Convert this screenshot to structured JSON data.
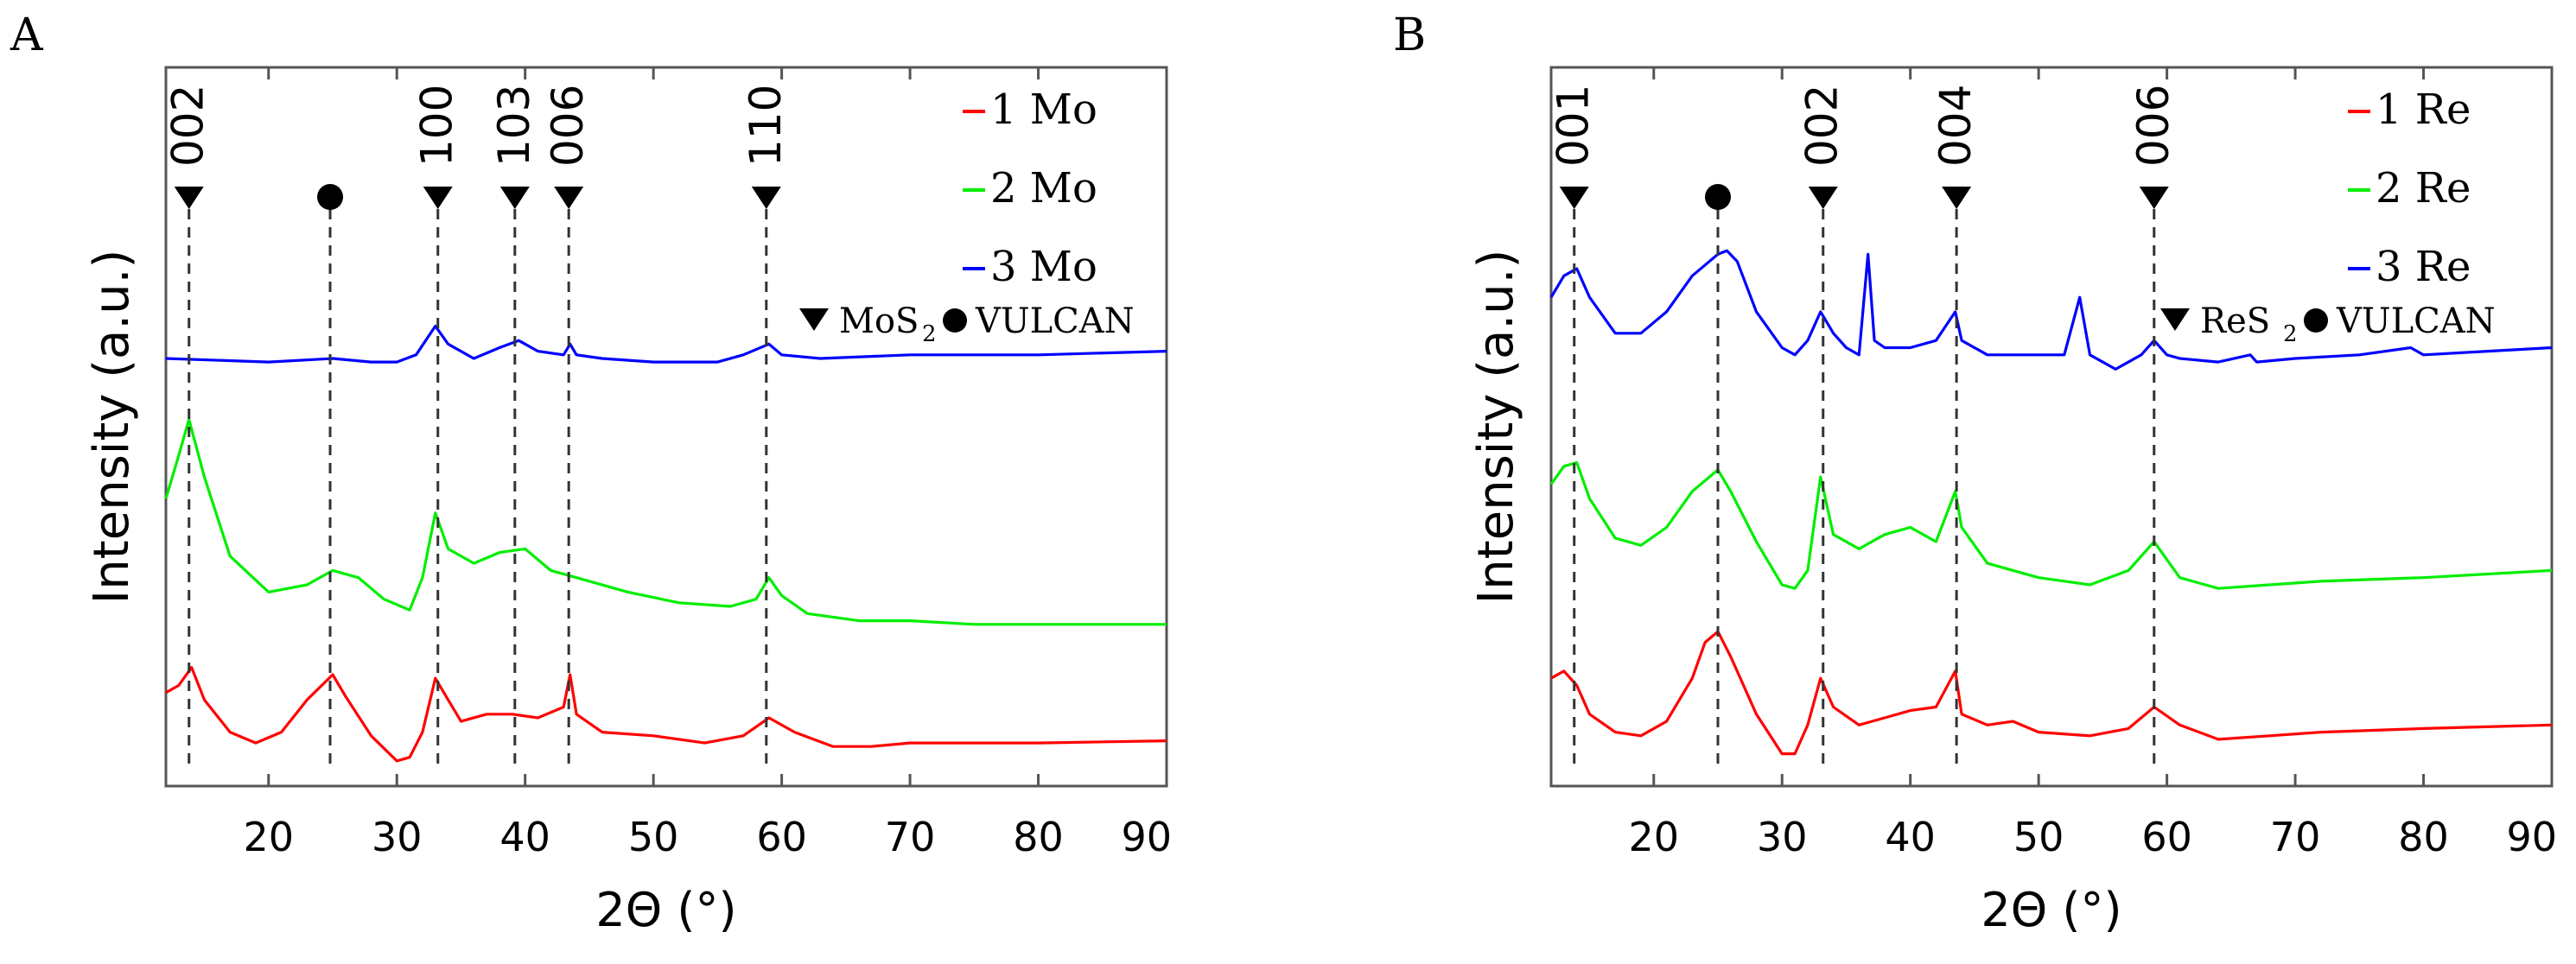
{
  "chart_data": [
    {
      "panel_label": "A",
      "type": "line",
      "xlabel": "2Θ (°)",
      "ylabel": "Intensity (a.u.)",
      "xlim": [
        12,
        90
      ],
      "x_ticks": [
        20,
        30,
        40,
        50,
        60,
        70,
        80,
        90
      ],
      "series": [
        {
          "name": "1 Mo",
          "color": "#ff0000",
          "x": [
            12,
            13,
            14,
            15,
            17,
            19,
            21,
            23,
            25,
            26,
            28,
            30,
            31,
            32,
            33,
            34,
            35,
            37,
            39,
            41,
            43,
            43.5,
            44,
            46,
            50,
            54,
            57,
            59,
            61,
            64,
            67,
            70,
            74,
            80,
            90
          ],
          "y": [
            0.13,
            0.14,
            0.165,
            0.12,
            0.075,
            0.06,
            0.075,
            0.12,
            0.155,
            0.125,
            0.07,
            0.035,
            0.04,
            0.075,
            0.15,
            0.12,
            0.09,
            0.1,
            0.1,
            0.095,
            0.11,
            0.155,
            0.1,
            0.075,
            0.07,
            0.06,
            0.07,
            0.095,
            0.075,
            0.055,
            0.055,
            0.06,
            0.06,
            0.06,
            0.063
          ]
        },
        {
          "name": "2 Mo",
          "color": "#00ee00",
          "x": [
            12,
            13,
            13.8,
            15,
            17,
            20,
            23,
            25,
            27,
            29,
            31,
            32,
            33,
            34,
            36,
            38,
            40,
            42,
            44,
            48,
            52,
            56,
            58,
            59,
            60,
            62,
            66,
            70,
            75,
            80,
            90
          ],
          "y": [
            0.4,
            0.46,
            0.51,
            0.43,
            0.32,
            0.27,
            0.28,
            0.3,
            0.29,
            0.26,
            0.245,
            0.29,
            0.38,
            0.33,
            0.31,
            0.325,
            0.33,
            0.3,
            0.29,
            0.27,
            0.255,
            0.25,
            0.26,
            0.29,
            0.265,
            0.24,
            0.23,
            0.23,
            0.225,
            0.225,
            0.225
          ]
        },
        {
          "name": "3 Mo",
          "color": "#0000ff",
          "x": [
            12,
            20,
            25,
            28,
            30,
            31.5,
            33,
            34,
            36,
            38,
            39.5,
            41,
            43,
            43.5,
            44,
            46,
            50,
            55,
            57,
            59,
            60,
            63,
            70,
            80,
            90
          ],
          "y": [
            0.595,
            0.59,
            0.595,
            0.59,
            0.59,
            0.6,
            0.64,
            0.615,
            0.595,
            0.61,
            0.62,
            0.605,
            0.6,
            0.615,
            0.6,
            0.595,
            0.59,
            0.59,
            0.6,
            0.615,
            0.6,
            0.595,
            0.6,
            0.6,
            0.605
          ]
        }
      ],
      "reflections": [
        {
          "label": "002",
          "x": 13.8,
          "phase": "MoS2"
        },
        {
          "label": "",
          "x": 24.8,
          "phase": "VULCAN"
        },
        {
          "label": "100",
          "x": 33.2,
          "phase": "MoS2"
        },
        {
          "label": "103",
          "x": 39.2,
          "phase": "MoS2"
        },
        {
          "label": "006",
          "x": 43.4,
          "phase": "MoS2"
        },
        {
          "label": "110",
          "x": 58.8,
          "phase": "MoS2"
        }
      ],
      "phase_legend": {
        "phase1": "MoS",
        "phase1_sub": "2",
        "phase2": "VULCAN"
      }
    },
    {
      "panel_label": "B",
      "type": "line",
      "xlabel": "2Θ (°)",
      "ylabel": "Intensity (a.u.)",
      "xlim": [
        12,
        90
      ],
      "x_ticks": [
        20,
        30,
        40,
        50,
        60,
        70,
        80,
        90
      ],
      "series": [
        {
          "name": "1 Re",
          "color": "#ff0000",
          "x": [
            12,
            13,
            14,
            15,
            17,
            19,
            21,
            23,
            24,
            25,
            26,
            28,
            30,
            31,
            32,
            33,
            34,
            36,
            38,
            40,
            42,
            43.5,
            44,
            46,
            48,
            50,
            54,
            57,
            59,
            61,
            64,
            68,
            72,
            80,
            90
          ],
          "y": [
            0.15,
            0.16,
            0.14,
            0.1,
            0.075,
            0.07,
            0.09,
            0.15,
            0.2,
            0.215,
            0.18,
            0.1,
            0.045,
            0.045,
            0.085,
            0.15,
            0.11,
            0.085,
            0.095,
            0.105,
            0.11,
            0.16,
            0.1,
            0.085,
            0.09,
            0.075,
            0.07,
            0.08,
            0.11,
            0.085,
            0.065,
            0.07,
            0.075,
            0.08,
            0.085
          ]
        },
        {
          "name": "2 Re",
          "color": "#00ee00",
          "x": [
            12,
            13,
            14,
            15,
            17,
            19,
            21,
            23,
            25,
            26,
            28,
            30,
            31,
            32,
            33,
            34,
            36,
            38,
            40,
            42,
            43.5,
            44,
            46,
            48,
            50,
            54,
            57,
            59,
            61,
            64,
            68,
            72,
            80,
            90
          ],
          "y": [
            0.42,
            0.445,
            0.45,
            0.4,
            0.345,
            0.335,
            0.36,
            0.41,
            0.44,
            0.41,
            0.34,
            0.28,
            0.275,
            0.3,
            0.43,
            0.35,
            0.33,
            0.35,
            0.36,
            0.34,
            0.41,
            0.36,
            0.31,
            0.3,
            0.29,
            0.28,
            0.3,
            0.34,
            0.29,
            0.275,
            0.28,
            0.285,
            0.29,
            0.3
          ]
        },
        {
          "name": "3 Re",
          "color": "#0000ff",
          "x": [
            12,
            13,
            14,
            15,
            17,
            19,
            21,
            23,
            25,
            25.7,
            26.5,
            28,
            30,
            31,
            32,
            33,
            34,
            35,
            36,
            36.7,
            37.2,
            38,
            40,
            42,
            43.5,
            44,
            46,
            48,
            50,
            52,
            53.2,
            54,
            56,
            58,
            59,
            60,
            61,
            64,
            66.5,
            67,
            70,
            75,
            79,
            80,
            85,
            90
          ],
          "y": [
            0.68,
            0.71,
            0.72,
            0.68,
            0.63,
            0.63,
            0.66,
            0.71,
            0.74,
            0.745,
            0.73,
            0.66,
            0.61,
            0.6,
            0.62,
            0.66,
            0.63,
            0.61,
            0.6,
            0.74,
            0.62,
            0.61,
            0.61,
            0.62,
            0.66,
            0.62,
            0.6,
            0.6,
            0.6,
            0.6,
            0.68,
            0.6,
            0.58,
            0.6,
            0.62,
            0.6,
            0.595,
            0.59,
            0.6,
            0.59,
            0.595,
            0.6,
            0.61,
            0.6,
            0.605,
            0.61
          ]
        }
      ],
      "reflections": [
        {
          "label": "001",
          "x": 13.8,
          "phase": "ReS2"
        },
        {
          "label": "",
          "x": 25.0,
          "phase": "VULCAN"
        },
        {
          "label": "002",
          "x": 33.2,
          "phase": "ReS2"
        },
        {
          "label": "004",
          "x": 43.6,
          "phase": "ReS2"
        },
        {
          "label": "006",
          "x": 59.0,
          "phase": "ReS2"
        }
      ],
      "phase_legend": {
        "phase1": "ReS",
        "phase1_sub": "2",
        "phase2": "VULCAN"
      }
    }
  ]
}
